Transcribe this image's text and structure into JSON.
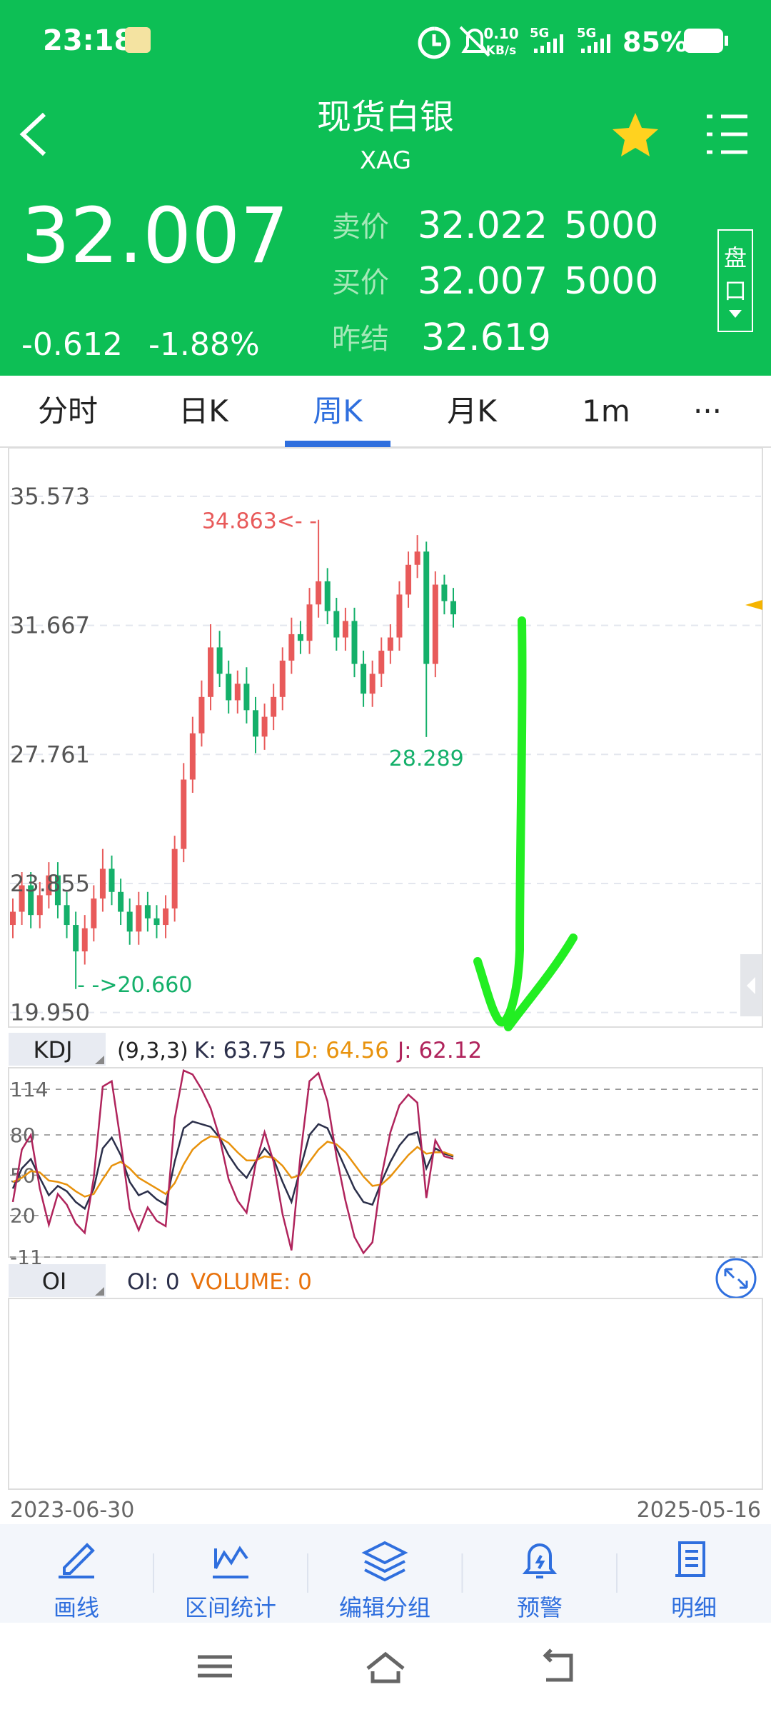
{
  "status_bar": {
    "time": "23:18",
    "net_speed": "0.10",
    "net_unit": "KB/s",
    "signal_1": "5G",
    "signal_2": "5G",
    "battery": "85%"
  },
  "header": {
    "title": "现货白银",
    "subtitle": "XAG"
  },
  "quote": {
    "price": "32.007",
    "change": "-0.612",
    "change_pct": "-1.88%",
    "ask_label": "卖价",
    "ask": "32.022",
    "ask_size": "5000",
    "bid_label": "买价",
    "bid": "32.007",
    "bid_size": "5000",
    "prev_label": "昨结",
    "prev": "32.619",
    "depth_button": [
      "盘",
      "口"
    ]
  },
  "tabs": [
    "分时",
    "日K",
    "周K",
    "月K",
    "1m",
    "···"
  ],
  "active_tab": 2,
  "chart_data": [
    {
      "type": "candlestick",
      "xlabels": [
        "2023-06-30",
        "2025-05-16"
      ],
      "open": [
        22.6,
        23.0,
        23.8,
        22.9,
        23.5,
        24.1,
        23.2,
        22.6,
        21.8,
        22.5,
        23.4,
        24.3,
        23.6,
        23.0,
        22.4,
        23.2,
        22.8,
        22.6,
        23.1,
        24.9,
        27.0,
        28.4,
        29.5,
        31.0,
        30.2,
        29.4,
        29.9,
        29.1,
        28.3,
        28.9,
        29.5,
        30.6,
        31.4,
        31.2,
        32.3,
        33.0,
        32.1,
        31.3,
        31.8,
        30.5,
        29.6,
        30.2,
        30.9,
        31.3,
        32.6,
        33.5,
        33.9,
        30.5,
        32.9,
        32.4
      ],
      "high": [
        23.4,
        24.2,
        24.2,
        23.9,
        24.5,
        24.5,
        23.6,
        23.0,
        22.9,
        23.8,
        24.9,
        24.7,
        24.0,
        23.4,
        23.6,
        23.6,
        23.2,
        23.5,
        25.3,
        27.5,
        28.9,
        30.0,
        31.7,
        31.5,
        30.6,
        30.3,
        30.4,
        29.5,
        29.3,
        29.9,
        31.0,
        31.9,
        31.8,
        32.8,
        34.863,
        33.4,
        32.5,
        32.2,
        32.2,
        30.9,
        30.6,
        31.3,
        31.7,
        33.0,
        33.9,
        34.4,
        34.2,
        33.3,
        33.2,
        32.8
      ],
      "low": [
        22.2,
        22.6,
        22.5,
        22.5,
        23.1,
        22.8,
        22.2,
        20.66,
        21.4,
        22.1,
        23.0,
        23.2,
        22.6,
        22.0,
        22.0,
        22.4,
        22.2,
        22.2,
        22.7,
        24.5,
        26.6,
        28.0,
        29.1,
        29.8,
        29.0,
        29.0,
        28.7,
        27.8,
        27.9,
        28.5,
        29.1,
        30.2,
        30.8,
        30.8,
        31.9,
        31.7,
        30.9,
        30.9,
        30.1,
        29.2,
        29.2,
        29.8,
        30.5,
        30.9,
        32.2,
        33.1,
        28.289,
        30.1,
        32.0,
        31.6
      ],
      "close": [
        23.0,
        23.8,
        22.9,
        23.5,
        24.1,
        23.2,
        22.6,
        21.8,
        22.5,
        23.4,
        24.3,
        23.6,
        23.0,
        22.4,
        23.2,
        22.8,
        22.6,
        23.1,
        24.9,
        27.0,
        28.4,
        29.5,
        31.0,
        30.2,
        29.4,
        29.9,
        29.1,
        28.3,
        28.9,
        29.5,
        30.6,
        31.4,
        31.2,
        32.3,
        33.0,
        32.1,
        31.3,
        31.8,
        30.5,
        29.6,
        30.2,
        30.9,
        31.3,
        32.6,
        33.5,
        33.9,
        30.5,
        32.9,
        32.4,
        32.0
      ],
      "up_color": "#e85a5a",
      "down_color": "#14b06a",
      "ylim": [
        19.51,
        37.04
      ],
      "yticks": [
        {
          "value": 35.573,
          "label": "35.573"
        },
        {
          "value": 31.667,
          "label": "31.667"
        },
        {
          "value": 27.761,
          "label": "27.761"
        },
        {
          "value": 23.855,
          "label": "23.855"
        },
        {
          "value": 19.95,
          "label": "19.950"
        }
      ],
      "grid": true,
      "annotations": [
        {
          "value": 34.863,
          "label": "34.863<- -",
          "index": 34,
          "color": "#e85a5a",
          "anchor": "end"
        },
        {
          "value": 28.289,
          "label": "28.289",
          "index": 46,
          "color": "#14b06a",
          "anchor": "middle"
        },
        {
          "value": 20.66,
          "label": "- ->20.660",
          "index": 7,
          "color": "#14b06a",
          "anchor": "start"
        }
      ]
    },
    {
      "type": "line",
      "title": "KDJ",
      "params": "(9,3,3)",
      "ylim": [
        -11,
        130
      ],
      "yticks": [
        114,
        80,
        50,
        20,
        -11
      ],
      "grid": true,
      "series": [
        {
          "name": "K: 63.75",
          "color": "#2b2f4a",
          "values": [
            40,
            55,
            62,
            48,
            35,
            42,
            38,
            30,
            25,
            40,
            70,
            78,
            65,
            45,
            35,
            38,
            32,
            28,
            60,
            85,
            90,
            88,
            86,
            78,
            65,
            55,
            48,
            60,
            70,
            62,
            45,
            30,
            55,
            80,
            88,
            85,
            70,
            55,
            40,
            30,
            28,
            45,
            60,
            72,
            80,
            82,
            55,
            70,
            66,
            63.75
          ]
        },
        {
          "name": "D: 64.56",
          "color": "#e8920c",
          "values": [
            45,
            48,
            53,
            52,
            46,
            45,
            43,
            38,
            34,
            36,
            47,
            57,
            60,
            55,
            48,
            44,
            40,
            36,
            44,
            58,
            69,
            75,
            79,
            78,
            74,
            67,
            61,
            61,
            64,
            63,
            57,
            48,
            50,
            60,
            69,
            75,
            73,
            67,
            58,
            49,
            42,
            43,
            49,
            57,
            65,
            71,
            66,
            67,
            67,
            64.56
          ]
        },
        {
          "name": "J: 62.12",
          "color": "#b0245c",
          "values": [
            30,
            69,
            80,
            40,
            13,
            36,
            28,
            14,
            7,
            48,
            116,
            120,
            75,
            25,
            9,
            26,
            16,
            12,
            92,
            128,
            125,
            114,
            100,
            78,
            47,
            31,
            22,
            58,
            82,
            60,
            21,
            -6,
            65,
            120,
            126,
            105,
            64,
            31,
            4,
            -8,
            0,
            49,
            82,
            102,
            110,
            104,
            33,
            76,
            64,
            62.12
          ]
        }
      ]
    },
    {
      "type": "line",
      "title": "OI",
      "series": [
        {
          "name": "OI: 0",
          "color": "#2b2f4a",
          "values": []
        },
        {
          "name": "VOLUME: 0",
          "color": "#e8720c",
          "values": []
        }
      ]
    }
  ],
  "toolbar": [
    "画线",
    "区间统计",
    "编辑分组",
    "预警",
    "明细"
  ]
}
